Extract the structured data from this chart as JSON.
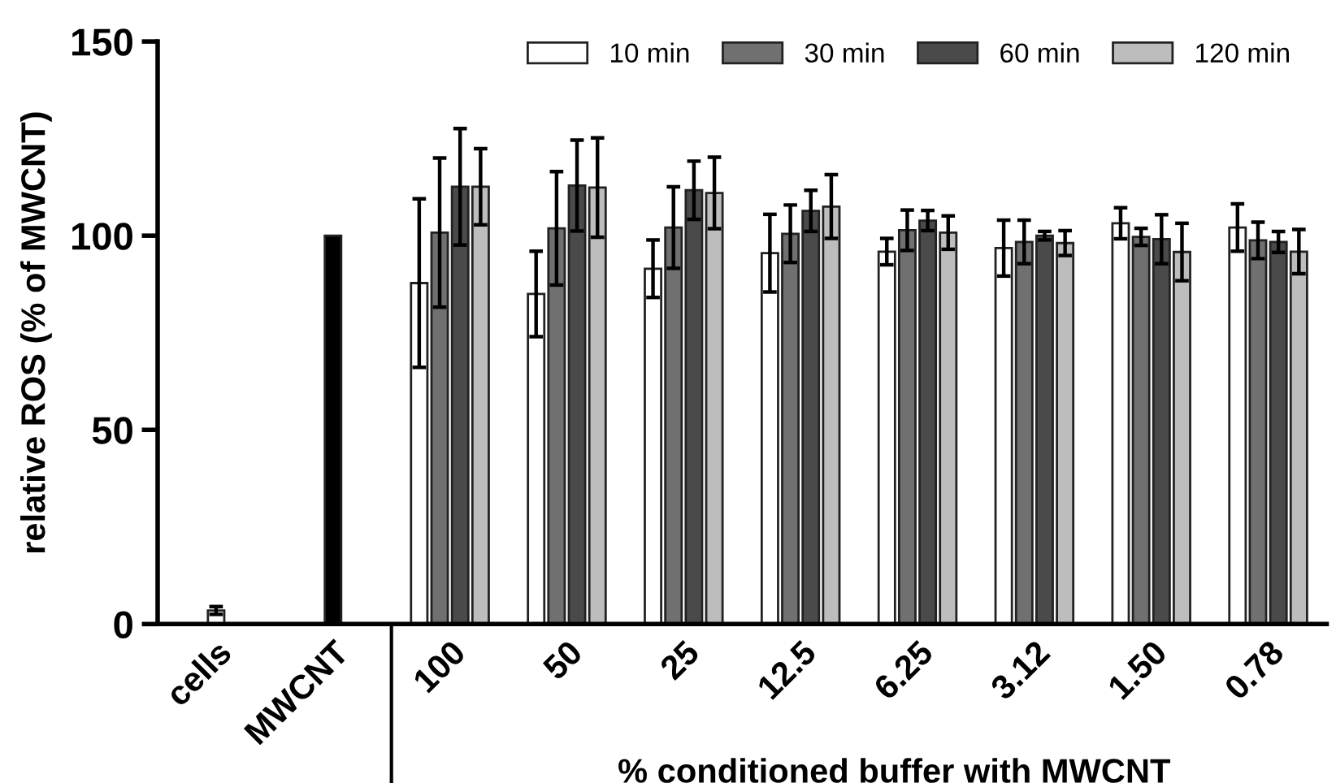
{
  "chart_data": {
    "type": "bar",
    "ylabel": "relative ROS (% of MWCNT)",
    "xlabel": "% conditioned buffer with MWCNT",
    "categories": [
      "cells",
      "MWCNT",
      "100",
      "50",
      "25",
      "12.5",
      "6.25",
      "3.12",
      "1.50",
      "0.78"
    ],
    "ylim": [
      0,
      150
    ],
    "yticks": [
      0,
      50,
      100,
      150
    ],
    "grid": false,
    "legend": "top right",
    "series": [
      {
        "colors": [
          "#ffffff",
          "#000000",
          null,
          null,
          null,
          null,
          null,
          null,
          null,
          null
        ],
        "values": [
          3.5,
          100,
          null,
          null,
          null,
          null,
          null,
          null,
          null,
          null
        ],
        "errors": [
          1,
          null,
          null,
          null,
          null,
          null,
          null,
          null,
          null,
          null
        ]
      },
      {
        "name": "10 min",
        "color": "#ffffff",
        "values": [
          null,
          null,
          87.8,
          85.0,
          91.5,
          95.5,
          95.9,
          96.8,
          103.2,
          102.1
        ],
        "errors": [
          null,
          null,
          21.7,
          11.0,
          7.4,
          10.0,
          3.4,
          7.2,
          4.0,
          6.1
        ]
      },
      {
        "name": "30 min",
        "color": "#707070",
        "values": [
          null,
          null,
          100.8,
          101.9,
          102.1,
          100.5,
          101.4,
          98.4,
          99.7,
          98.8
        ],
        "errors": [
          null,
          null,
          19.2,
          14.6,
          10.5,
          7.4,
          5.2,
          5.6,
          2.2,
          4.7
        ]
      },
      {
        "name": "60 min",
        "color": "#4a4a4a",
        "values": [
          null,
          null,
          112.6,
          112.9,
          111.7,
          106.4,
          103.9,
          100.0,
          99.1,
          98.4
        ],
        "errors": [
          null,
          null,
          15.0,
          11.7,
          7.5,
          5.3,
          2.6,
          1.1,
          6.3,
          2.7
        ]
      },
      {
        "name": "120 min",
        "color": "#bdbdbd",
        "values": [
          null,
          null,
          112.6,
          112.4,
          111.0,
          107.5,
          100.8,
          98.1,
          95.8,
          95.9
        ],
        "errors": [
          null,
          null,
          9.8,
          12.8,
          9.2,
          8.2,
          4.3,
          3.2,
          7.4,
          5.7
        ]
      }
    ]
  }
}
